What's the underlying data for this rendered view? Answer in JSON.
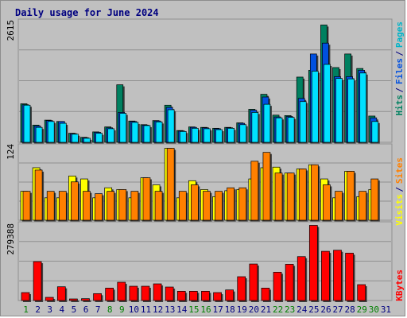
{
  "chart_data": [
    {
      "type": "bar",
      "title": "Daily usage for June 2024",
      "ymax_label": "2615",
      "legend": [
        {
          "label": "Pages",
          "color": "#00b4c8"
        },
        {
          "label": "/",
          "color": "#000080"
        },
        {
          "label": "Files",
          "color": "#0050e0"
        },
        {
          "label": "/",
          "color": "#000080"
        },
        {
          "label": "Hits",
          "color": "#008060"
        }
      ],
      "ylim": [
        0,
        2615
      ],
      "categories": [
        "1",
        "2",
        "3",
        "4",
        "5",
        "6",
        "7",
        "8",
        "9",
        "10",
        "11",
        "12",
        "13",
        "14",
        "15",
        "16",
        "17",
        "18",
        "19",
        "20",
        "21",
        "22",
        "23",
        "24",
        "25",
        "26",
        "27",
        "28",
        "29",
        "30",
        "31"
      ],
      "series": [
        {
          "name": "Hits",
          "color": "#008060",
          "values": [
            850,
            380,
            490,
            460,
            200,
            110,
            230,
            340,
            1270,
            470,
            390,
            480,
            820,
            260,
            340,
            330,
            310,
            330,
            430,
            730,
            1060,
            600,
            590,
            1440,
            1590,
            2590,
            1650,
            1950,
            1630,
            580,
            0
          ]
        },
        {
          "name": "Files",
          "color": "#0050e0",
          "values": [
            830,
            360,
            480,
            460,
            190,
            100,
            220,
            320,
            660,
            460,
            380,
            470,
            770,
            250,
            330,
            320,
            300,
            320,
            420,
            710,
            1000,
            560,
            570,
            970,
            1950,
            2190,
            1450,
            1450,
            1590,
            540,
            0
          ]
        },
        {
          "name": "Pages",
          "color": "#00e0ff",
          "values": [
            820,
            330,
            460,
            420,
            180,
            90,
            200,
            300,
            640,
            440,
            370,
            450,
            720,
            240,
            310,
            300,
            280,
            310,
            390,
            660,
            840,
            540,
            550,
            900,
            1570,
            1720,
            1410,
            1400,
            1530,
            460,
            0
          ]
        }
      ]
    },
    {
      "type": "bar",
      "ymax_label": "124",
      "legend": [
        {
          "label": "Sites",
          "color": "#ff8000"
        },
        {
          "label": "/",
          "color": "#000080"
        },
        {
          "label": "Visits",
          "color": "#ffff00"
        }
      ],
      "ylim": [
        0,
        124
      ],
      "categories": [
        "1",
        "2",
        "3",
        "4",
        "5",
        "6",
        "7",
        "8",
        "9",
        "10",
        "11",
        "12",
        "13",
        "14",
        "15",
        "16",
        "17",
        "18",
        "19",
        "20",
        "21",
        "22",
        "23",
        "24",
        "25",
        "26",
        "27",
        "28",
        "29",
        "30",
        "31"
      ],
      "series": [
        {
          "name": "Visits",
          "color": "#ffff00",
          "values": [
            49,
            89,
            38,
            38,
            75,
            70,
            38,
            55,
            52,
            38,
            72,
            60,
            122,
            38,
            67,
            52,
            40,
            50,
            52,
            70,
            89,
            90,
            80,
            87,
            94,
            70,
            38,
            83,
            40,
            52,
            0
          ]
        },
        {
          "name": "Sites",
          "color": "#ff8000",
          "values": [
            49,
            85,
            49,
            49,
            65,
            49,
            45,
            49,
            52,
            49,
            72,
            49,
            122,
            49,
            60,
            49,
            49,
            55,
            55,
            100,
            115,
            80,
            80,
            87,
            94,
            60,
            49,
            83,
            49,
            70,
            0
          ]
        }
      ]
    },
    {
      "type": "bar",
      "ymax_label": "279388",
      "legend": [
        {
          "label": "KBytes",
          "color": "#ff0000"
        }
      ],
      "ylim": [
        0,
        279388
      ],
      "categories": [
        "1",
        "2",
        "3",
        "4",
        "5",
        "6",
        "7",
        "8",
        "9",
        "10",
        "11",
        "12",
        "13",
        "14",
        "15",
        "16",
        "17",
        "18",
        "19",
        "20",
        "21",
        "22",
        "23",
        "24",
        "25",
        "26",
        "27",
        "28",
        "29",
        "30",
        "31"
      ],
      "series": [
        {
          "name": "KBytes",
          "color": "#ff0000",
          "values": [
            30000,
            147000,
            12000,
            52000,
            6000,
            7000,
            26000,
            47000,
            69000,
            54000,
            54000,
            63000,
            51000,
            35000,
            35000,
            35000,
            30000,
            40000,
            90000,
            138000,
            47000,
            107000,
            137000,
            166000,
            284000,
            186000,
            190000,
            179000,
            60000,
            0,
            0
          ]
        }
      ]
    }
  ],
  "day_colors": [
    "#008000",
    "#000080",
    "#000080",
    "#000080",
    "#000080",
    "#000080",
    "#000080",
    "#008000",
    "#008000",
    "#000080",
    "#000080",
    "#000080",
    "#000080",
    "#000080",
    "#008000",
    "#008000",
    "#000080",
    "#000080",
    "#000080",
    "#000080",
    "#000080",
    "#008000",
    "#008000",
    "#000080",
    "#000080",
    "#000080",
    "#000080",
    "#000080",
    "#008000",
    "#008000",
    "#000080"
  ]
}
